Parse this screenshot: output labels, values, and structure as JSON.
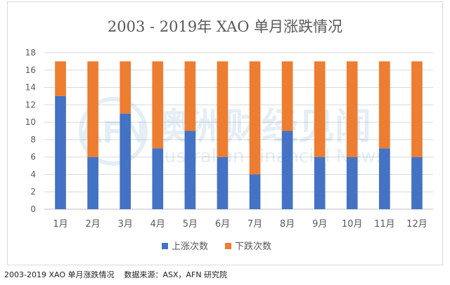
{
  "chart_data": {
    "type": "bar",
    "stacked": true,
    "title": "2003 - 2019年 XAO 单月涨跌情况",
    "categories": [
      "1月",
      "2月",
      "3月",
      "4月",
      "5月",
      "6月",
      "7月",
      "8月",
      "9月",
      "10月",
      "11月",
      "12月"
    ],
    "series": [
      {
        "name": "上涨次数",
        "color": "#4472c4",
        "values": [
          13,
          6,
          11,
          7,
          9,
          6,
          4,
          9,
          6,
          6,
          7,
          6
        ]
      },
      {
        "name": "下跌次数",
        "color": "#ed7d31",
        "values": [
          4,
          11,
          6,
          10,
          8,
          11,
          13,
          8,
          11,
          11,
          10,
          11
        ]
      }
    ],
    "ylim": [
      0,
      18
    ],
    "yticks": [
      0,
      2,
      4,
      6,
      8,
      10,
      12,
      14,
      16,
      18
    ],
    "grid": true,
    "legend_position": "bottom"
  },
  "watermark": {
    "logo_text": "AFN",
    "cn_text": "澳洲财经见闻",
    "en_text": "Australian Financial News"
  },
  "caption": "2003-2019 XAO 单月涨跌情况    数据来源：ASX，AFN 研究院"
}
